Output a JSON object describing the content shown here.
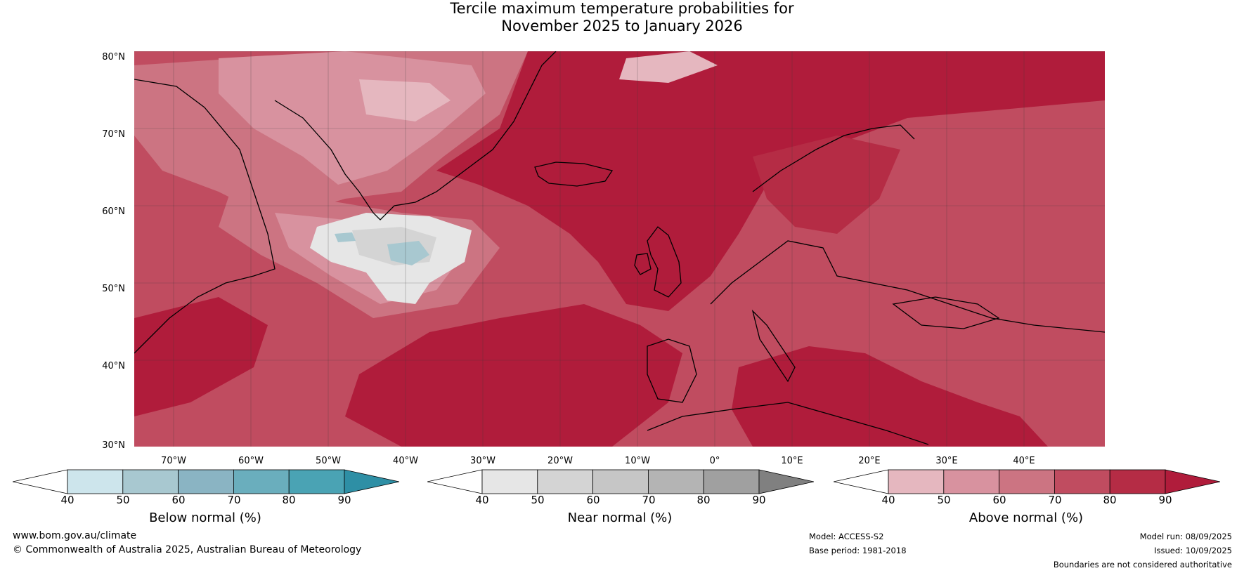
{
  "title_line1": "Tercile maximum temperature probabilities for",
  "title_line2": "November 2025 to January 2026",
  "lat_labels": [
    "80°N",
    "70°N",
    "60°N",
    "50°N",
    "40°N",
    "30°N"
  ],
  "lon_labels": [
    "70°W",
    "60°W",
    "50°W",
    "40°W",
    "30°W",
    "20°W",
    "10°W",
    "0°",
    "10°E",
    "20°E",
    "30°E",
    "40°E"
  ],
  "legends": {
    "below": {
      "label": "Below normal (%)",
      "ticks": [
        "40",
        "50",
        "60",
        "70",
        "80",
        "90"
      ],
      "colors": [
        "#ffffff",
        "#cde5ec",
        "#a8c8d0",
        "#8ab4c3",
        "#6aaebd",
        "#4aa3b4",
        "#2e8fa5"
      ]
    },
    "near": {
      "label": "Near normal (%)",
      "ticks": [
        "40",
        "50",
        "60",
        "70",
        "80",
        "90"
      ],
      "colors": [
        "#ffffff",
        "#e6e6e6",
        "#d4d4d4",
        "#c6c6c6",
        "#b4b4b4",
        "#a0a0a0",
        "#808080"
      ]
    },
    "above": {
      "label": "Above normal (%)",
      "ticks": [
        "40",
        "50",
        "60",
        "70",
        "80",
        "90"
      ],
      "colors": [
        "#ffffff",
        "#e5b7bf",
        "#d8929f",
        "#cc7482",
        "#c04c60",
        "#b52c45",
        "#b01c3b"
      ]
    }
  },
  "footer": {
    "website": "www.bom.gov.au/climate",
    "copyright": "© Commonwealth of Australia 2025, Australian Bureau of Meteorology",
    "model": "Model: ACCESS-S2",
    "base_period": "Base period: 1981-2018",
    "model_run": "Model run: 08/09/2025",
    "issued": "Issued: 10/09/2025",
    "disclaimer": "Boundaries are not considered authoritative"
  }
}
